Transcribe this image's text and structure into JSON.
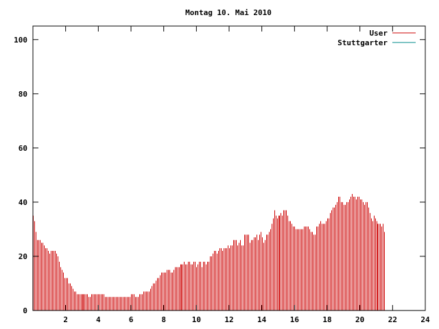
{
  "chart_data": {
    "type": "bar",
    "title": "Montag 10. Mai 2010",
    "xlabel": "",
    "ylabel": "",
    "xlim": [
      0,
      24
    ],
    "ylim": [
      0,
      105
    ],
    "xticks": [
      "2",
      "4",
      "6",
      "8",
      "10",
      "12",
      "14",
      "16",
      "18",
      "20",
      "22",
      "24"
    ],
    "yticks": [
      "0",
      "20",
      "40",
      "60",
      "80",
      "100"
    ],
    "grid": false,
    "legend_position": "top-right",
    "series": [
      {
        "name": "User",
        "color": "#cc0000",
        "bin_minutes": 5,
        "values": [
          35,
          33,
          29,
          26,
          26,
          26,
          25,
          25,
          24,
          23,
          23,
          22,
          21,
          22,
          22,
          22,
          22,
          21,
          20,
          18,
          16,
          15,
          14,
          12,
          12,
          12,
          10,
          10,
          9,
          8,
          7,
          7,
          6,
          6,
          6,
          6,
          6,
          6,
          6,
          6,
          6,
          5,
          5,
          6,
          6,
          6,
          6,
          6,
          6,
          6,
          6,
          6,
          6,
          5,
          5,
          5,
          5,
          5,
          5,
          5,
          5,
          5,
          5,
          5,
          5,
          5,
          5,
          5,
          5,
          5,
          5,
          5,
          6,
          6,
          6,
          5,
          5,
          5,
          6,
          6,
          6,
          7,
          7,
          7,
          7,
          7,
          8,
          9,
          10,
          10,
          11,
          12,
          12,
          13,
          14,
          14,
          14,
          14,
          15,
          15,
          15,
          14,
          14,
          15,
          16,
          16,
          16,
          16,
          17,
          17,
          17,
          18,
          17,
          17,
          18,
          18,
          17,
          17,
          18,
          18,
          16,
          17,
          18,
          18,
          16,
          18,
          18,
          17,
          18,
          18,
          20,
          20,
          21,
          22,
          22,
          21,
          22,
          23,
          23,
          22,
          23,
          23,
          23,
          24,
          23,
          24,
          24,
          26,
          26,
          26,
          24,
          25,
          26,
          24,
          24,
          28,
          28,
          28,
          28,
          25,
          26,
          26,
          27,
          27,
          28,
          26,
          28,
          29,
          27,
          25,
          26,
          28,
          28,
          29,
          30,
          32,
          34,
          37,
          35,
          34,
          35,
          35,
          36,
          35,
          37,
          37,
          37,
          35,
          33,
          33,
          32,
          31,
          31,
          30,
          30,
          30,
          30,
          30,
          30,
          31,
          31,
          31,
          31,
          30,
          29,
          29,
          28,
          28,
          31,
          31,
          32,
          33,
          32,
          32,
          32,
          33,
          34,
          34,
          36,
          37,
          38,
          38,
          39,
          40,
          42,
          42,
          40,
          40,
          39,
          39,
          40,
          40,
          41,
          42,
          43,
          42,
          42,
          41,
          42,
          42,
          41,
          41,
          40,
          39,
          40,
          40,
          38,
          36,
          34,
          33,
          35,
          34,
          33,
          32,
          32,
          32,
          31,
          32,
          29
        ]
      },
      {
        "name": "Stuttgarter",
        "color": "#008b8b",
        "values": []
      }
    ]
  }
}
